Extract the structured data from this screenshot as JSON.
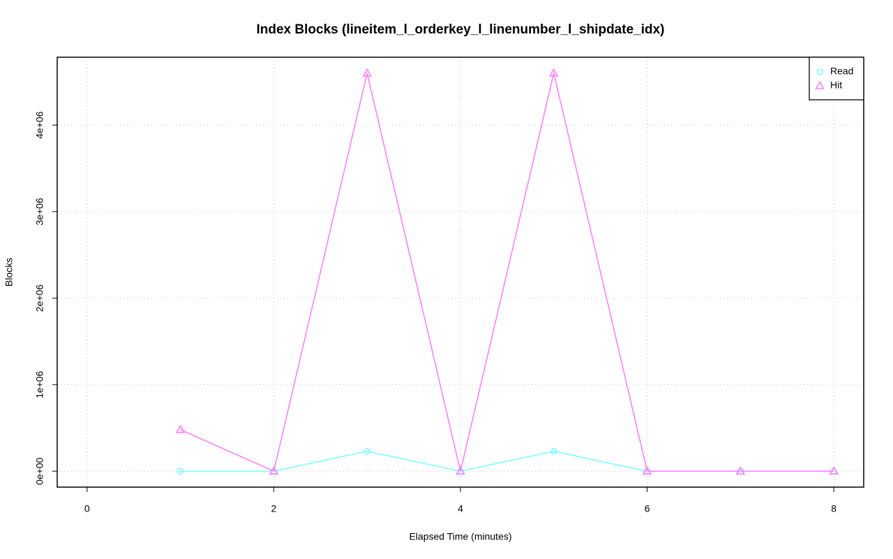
{
  "chart_data": {
    "type": "line",
    "title": "Index Blocks (lineitem_l_orderkey_l_linenumber_l_shipdate_idx)",
    "x_label": "Elapsed Time (minutes)",
    "y_label": "Blocks",
    "x": [
      1,
      2,
      3,
      4,
      5,
      6,
      7,
      8
    ],
    "series": [
      {
        "name": "Read",
        "color": "#80ffff",
        "marker": "circle",
        "values": [
          0,
          0,
          230000,
          0,
          230000,
          0,
          0,
          0
        ]
      },
      {
        "name": "Hit",
        "color": "#ff80ff",
        "marker": "triangle",
        "values": [
          480000,
          0,
          4600000,
          0,
          4600000,
          0,
          0,
          0
        ]
      }
    ],
    "xlim": [
      -0.32,
      8.32
    ],
    "xticks": [
      0,
      2,
      4,
      6,
      8
    ],
    "ylim": [
      -184000,
      4784000
    ],
    "yticks": [
      {
        "value": 0,
        "label": "0e+00"
      },
      {
        "value": 1000000,
        "label": "1e+06"
      },
      {
        "value": 2000000,
        "label": "2e+06"
      },
      {
        "value": 3000000,
        "label": "3e+06"
      },
      {
        "value": 4000000,
        "label": "4e+06"
      }
    ],
    "grid": true,
    "legend": "top-right"
  }
}
